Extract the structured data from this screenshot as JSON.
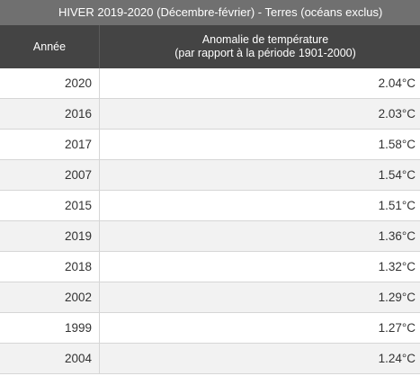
{
  "table": {
    "caption": "HIVER 2019-2020 (Décembre-février) - Terres (océans exclus)",
    "headers": {
      "year": "Année",
      "anomaly_line1": "Anomalie de température",
      "anomaly_line2": "(par rapport à la période 1901-2000)"
    },
    "rows": [
      {
        "year": "2020",
        "anomaly": "2.04°C"
      },
      {
        "year": "2016",
        "anomaly": "2.03°C"
      },
      {
        "year": "2017",
        "anomaly": "1.58°C"
      },
      {
        "year": "2007",
        "anomaly": "1.54°C"
      },
      {
        "year": "2015",
        "anomaly": "1.51°C"
      },
      {
        "year": "2019",
        "anomaly": "1.36°C"
      },
      {
        "year": "2018",
        "anomaly": "1.32°C"
      },
      {
        "year": "2002",
        "anomaly": "1.29°C"
      },
      {
        "year": "1999",
        "anomaly": "1.27°C"
      },
      {
        "year": "2004",
        "anomaly": "1.24°C"
      }
    ]
  }
}
